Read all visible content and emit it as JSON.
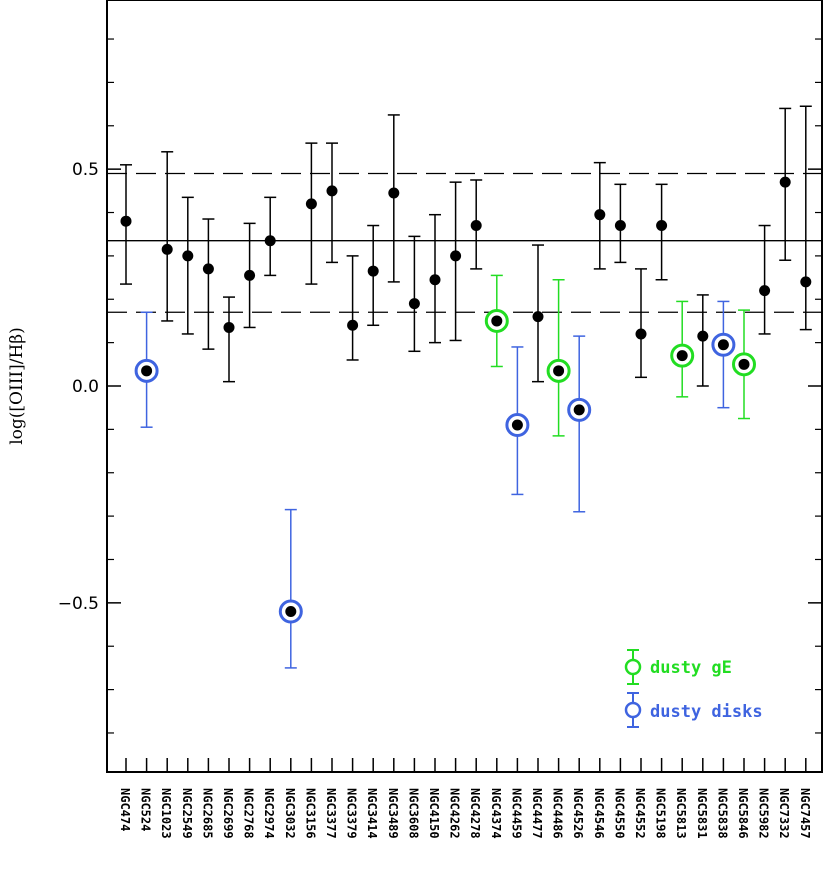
{
  "chart_data": {
    "type": "scatter",
    "ylabel": "log([OIII]/Hβ)",
    "ylim": [
      -0.89,
      0.89
    ],
    "yticks": [
      -0.5,
      0.0,
      0.5
    ],
    "ytick_labels": [
      "−0.5",
      "0.0",
      "0.5"
    ],
    "reference_lines": [
      {
        "name": "mean",
        "value": 0.335,
        "style": "solid"
      },
      {
        "name": "upper",
        "value": 0.49,
        "style": "dashed"
      },
      {
        "name": "lower",
        "value": 0.17,
        "style": "dashed"
      }
    ],
    "categories": [
      "NGC474",
      "NGC524",
      "NGC1023",
      "NGC2549",
      "NGC2685",
      "NGC2699",
      "NGC2768",
      "NGC2974",
      "NGC3032",
      "NGC3156",
      "NGC3377",
      "NGC3379",
      "NGC3414",
      "NGC3489",
      "NGC3608",
      "NGC4150",
      "NGC4262",
      "NGC4278",
      "NGC4374",
      "NGC4459",
      "NGC4477",
      "NGC4486",
      "NGC4526",
      "NGC4546",
      "NGC4550",
      "NGC4552",
      "NGC5198",
      "NGC5813",
      "NGC5831",
      "NGC5838",
      "NGC5846",
      "NGC5982",
      "NGC7332",
      "NGC7457"
    ],
    "series": [
      {
        "name": "all",
        "color": "#000000",
        "values": [
          {
            "y": 0.38,
            "lo": 0.235,
            "hi": 0.51
          },
          {
            "y": 0.035,
            "lo": -0.095,
            "hi": 0.17
          },
          {
            "y": 0.315,
            "lo": 0.15,
            "hi": 0.54
          },
          {
            "y": 0.3,
            "lo": 0.12,
            "hi": 0.435
          },
          {
            "y": 0.27,
            "lo": 0.085,
            "hi": 0.385
          },
          {
            "y": 0.135,
            "lo": 0.01,
            "hi": 0.205
          },
          {
            "y": 0.255,
            "lo": 0.135,
            "hi": 0.375
          },
          {
            "y": 0.335,
            "lo": 0.255,
            "hi": 0.435
          },
          {
            "y": -0.52,
            "lo": -0.65,
            "hi": -0.285
          },
          {
            "y": 0.42,
            "lo": 0.235,
            "hi": 0.56
          },
          {
            "y": 0.45,
            "lo": 0.285,
            "hi": 0.56
          },
          {
            "y": 0.14,
            "lo": 0.06,
            "hi": 0.3
          },
          {
            "y": 0.265,
            "lo": 0.14,
            "hi": 0.37
          },
          {
            "y": 0.445,
            "lo": 0.24,
            "hi": 0.625
          },
          {
            "y": 0.19,
            "lo": 0.08,
            "hi": 0.345
          },
          {
            "y": 0.245,
            "lo": 0.1,
            "hi": 0.395
          },
          {
            "y": 0.3,
            "lo": 0.105,
            "hi": 0.47
          },
          {
            "y": 0.37,
            "lo": 0.27,
            "hi": 0.475
          },
          {
            "y": 0.15,
            "lo": 0.045,
            "hi": 0.255
          },
          {
            "y": -0.09,
            "lo": -0.25,
            "hi": 0.09
          },
          {
            "y": 0.16,
            "lo": 0.01,
            "hi": 0.325
          },
          {
            "y": 0.035,
            "lo": -0.115,
            "hi": 0.245
          },
          {
            "y": -0.055,
            "lo": -0.29,
            "hi": 0.115
          },
          {
            "y": 0.395,
            "lo": 0.27,
            "hi": 0.515
          },
          {
            "y": 0.37,
            "lo": 0.285,
            "hi": 0.465
          },
          {
            "y": 0.12,
            "lo": 0.02,
            "hi": 0.27
          },
          {
            "y": 0.37,
            "lo": 0.245,
            "hi": 0.465
          },
          {
            "y": 0.07,
            "lo": -0.025,
            "hi": 0.195
          },
          {
            "y": 0.115,
            "lo": 0.0,
            "hi": 0.21
          },
          {
            "y": 0.095,
            "lo": -0.05,
            "hi": 0.195
          },
          {
            "y": 0.05,
            "lo": -0.075,
            "hi": 0.175
          },
          {
            "y": 0.22,
            "lo": 0.12,
            "hi": 0.37
          },
          {
            "y": 0.47,
            "lo": 0.29,
            "hi": 0.64
          },
          {
            "y": 0.24,
            "lo": 0.13,
            "hi": 0.645
          }
        ]
      },
      {
        "name": "dusty gE",
        "color": "#22dd22",
        "indices": [
          18,
          21,
          27,
          30
        ]
      },
      {
        "name": "dusty disks",
        "color": "#3f64e0",
        "indices": [
          1,
          8,
          19,
          22,
          29
        ]
      }
    ],
    "legend": {
      "position": "bottom-right",
      "entries": [
        {
          "label": "dusty gE",
          "color": "#22dd22"
        },
        {
          "label": "dusty disks",
          "color": "#3f64e0"
        }
      ]
    }
  }
}
